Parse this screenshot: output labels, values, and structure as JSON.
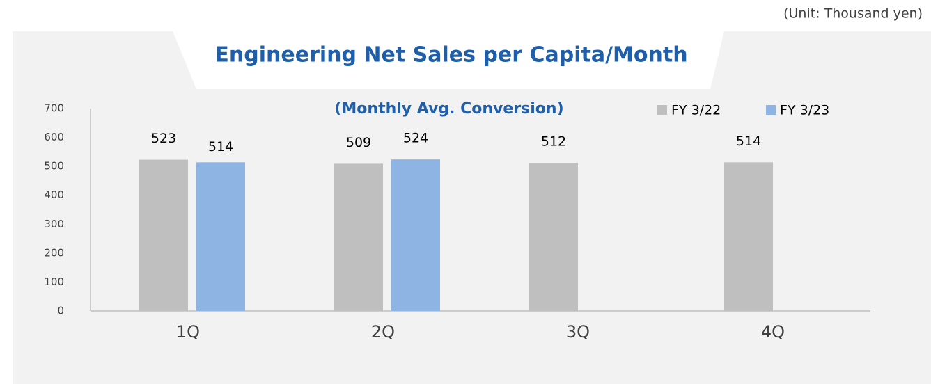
{
  "unit_note": "(Unit: Thousand yen)",
  "chart_data": {
    "type": "bar",
    "title": "Engineering  Net Sales per Capita/Month",
    "subtitle": "(Monthly Avg. Conversion)",
    "categories": [
      "1Q",
      "2Q",
      "3Q",
      "4Q"
    ],
    "series": [
      {
        "name": "FY 3/22",
        "color": "#bfbfbf",
        "values": [
          523,
          509,
          512,
          514
        ]
      },
      {
        "name": "FY 3/23",
        "color": "#8eb4e3",
        "values": [
          514,
          524,
          null,
          null
        ]
      }
    ],
    "ylim": [
      0,
      700
    ],
    "yticks": [
      0,
      100,
      200,
      300,
      400,
      500,
      600,
      700
    ],
    "grid": false,
    "legend": "top-right",
    "data_labels": true
  }
}
